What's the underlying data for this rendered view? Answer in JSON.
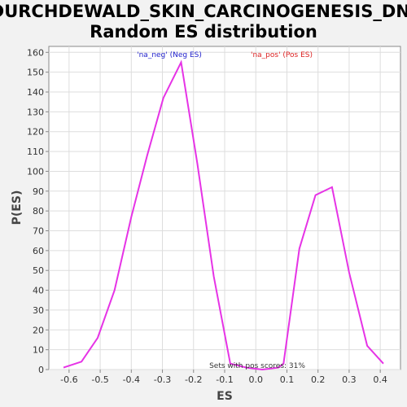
{
  "chart_data": {
    "type": "line",
    "title_lines": [
      "DURCHDEWALD_SKIN_CARCINOGENESIS_DN:",
      "Random ES distribution"
    ],
    "xlabel": "ES",
    "ylabel": "P(ES)",
    "xlim": [
      -0.665,
      0.465
    ],
    "ylim": [
      0,
      163
    ],
    "xticks": [
      -0.6,
      -0.5,
      -0.4,
      -0.3,
      -0.2,
      -0.1,
      0.0,
      0.1,
      0.2,
      0.3,
      0.4
    ],
    "xtick_labels": [
      "-0.6",
      "-0.5",
      "-0.4",
      "-0.3",
      "-0.2",
      "-0.1",
      "0.0",
      "0.1",
      "0.2",
      "0.3",
      "0.4"
    ],
    "yticks": [
      0,
      10,
      20,
      30,
      40,
      50,
      60,
      70,
      80,
      90,
      100,
      110,
      120,
      130,
      140,
      150,
      160
    ],
    "ytick_labels": [
      "0",
      "10",
      "20",
      "30",
      "40",
      "50",
      "60",
      "70",
      "80",
      "90",
      "100",
      "110",
      "120",
      "130",
      "140",
      "150",
      "160"
    ],
    "grid": true,
    "series": [
      {
        "color": "#e633e6",
        "x": [
          -0.618,
          -0.56,
          -0.508,
          -0.454,
          -0.4,
          -0.349,
          -0.297,
          -0.24,
          -0.188,
          -0.135,
          -0.082,
          -0.03,
          0.021,
          0.073,
          0.089,
          0.14,
          0.192,
          0.245,
          0.3,
          0.358,
          0.41
        ],
        "y": [
          1,
          4,
          16,
          40,
          77,
          108,
          137,
          155,
          104,
          47,
          3,
          1,
          0,
          1,
          3,
          61,
          88,
          92,
          49,
          12,
          3
        ]
      }
    ],
    "legend": [
      {
        "text": "'na_neg' (Neg ES)",
        "color": "#2222cc"
      },
      {
        "text": "'na_pos' (Pos ES)",
        "color": "#dd2222"
      }
    ],
    "annotation": "Sets with pos scores: 31%"
  }
}
